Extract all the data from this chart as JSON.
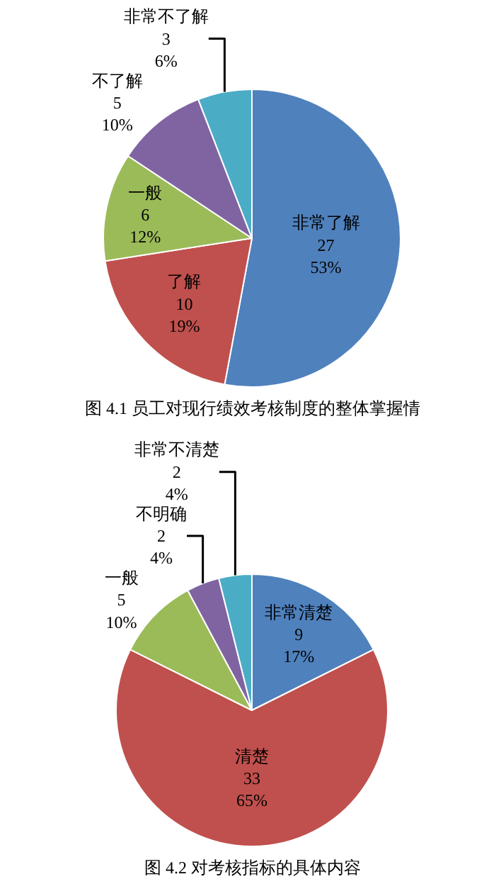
{
  "chart_data": [
    {
      "type": "pie",
      "title": "图 4.1 员工对现行绩效考核制度的整体掌握情",
      "categories": [
        "非常了解",
        "了解",
        "一般",
        "不了解",
        "非常不了解"
      ],
      "values": [
        27,
        10,
        6,
        5,
        3
      ],
      "value_labels": [
        "27\n53%",
        "10\n19%",
        "6\n12%",
        "5\n10%",
        "3\n6%"
      ],
      "colors": [
        "#4f81bd",
        "#c0504d",
        "#9bbb59",
        "#8064a2",
        "#4bacc6"
      ]
    },
    {
      "type": "pie",
      "title": "图 4.2 对考核指标的具体内容",
      "categories": [
        "非常清楚",
        "清楚",
        "一般",
        "不明确",
        "非常不清楚"
      ],
      "values": [
        9,
        33,
        5,
        2,
        2
      ],
      "value_labels": [
        "9\n17%",
        "33\n65%",
        "5\n10%",
        "2\n4%",
        "2\n4%"
      ],
      "colors": [
        "#4f81bd",
        "#c0504d",
        "#9bbb59",
        "#8064a2",
        "#4bacc6"
      ]
    }
  ]
}
